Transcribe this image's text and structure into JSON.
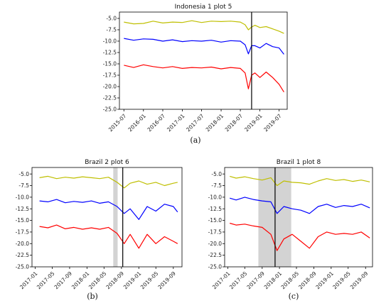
{
  "chart_data": [
    {
      "type": "line",
      "title": "Indonesia 1 plot 5",
      "caption": "(a)",
      "xlabel": "",
      "ylabel": "",
      "xlim": [
        "2015-05-20",
        "2019-09-15"
      ],
      "ylim": [
        -25.0,
        -3.6
      ],
      "yticks": [
        -5.0,
        -7.5,
        -10.0,
        -12.5,
        -15.0,
        -17.5,
        -20.0,
        -22.5,
        -25.0
      ],
      "ytick_labels": [
        "-5.0",
        "-7.5",
        "-10.0",
        "-12.5",
        "-15.0",
        "-17.5",
        "-20.0",
        "-22.5",
        "-25.0"
      ],
      "xticks": [
        "2015-07-01",
        "2016-01-01",
        "2016-07-01",
        "2017-01-01",
        "2017-07-01",
        "2018-01-01",
        "2018-07-01",
        "2019-01-01",
        "2019-07-01"
      ],
      "xtick_labels": [
        "2015-07",
        "2016-01",
        "2016-07",
        "2017-01",
        "2017-07",
        "2018-01",
        "2018-07",
        "2019-01",
        "2019-07"
      ],
      "vline": "2018-10-15",
      "shaded": [],
      "series": [
        {
          "color": "#bfbf00",
          "x": [
            "2015-07-01",
            "2015-10-01",
            "2016-01-01",
            "2016-04-01",
            "2016-07-01",
            "2016-10-01",
            "2017-01-01",
            "2017-04-01",
            "2017-07-01",
            "2017-10-01",
            "2018-01-01",
            "2018-04-01",
            "2018-07-01",
            "2018-08-15",
            "2018-09-15",
            "2018-10-15",
            "2018-11-15",
            "2019-01-01",
            "2019-03-01",
            "2019-05-01",
            "2019-07-01",
            "2019-08-15"
          ],
          "values": [
            -5.8,
            -6.2,
            -6.1,
            -5.6,
            -6.0,
            -5.8,
            -5.9,
            -5.5,
            -5.9,
            -5.6,
            -5.7,
            -5.6,
            -5.8,
            -6.4,
            -7.5,
            -6.9,
            -6.5,
            -7.0,
            -6.8,
            -7.3,
            -7.8,
            -8.3
          ]
        },
        {
          "color": "#0000ff",
          "x": [
            "2015-07-01",
            "2015-10-01",
            "2016-01-01",
            "2016-04-01",
            "2016-07-01",
            "2016-10-01",
            "2017-01-01",
            "2017-04-01",
            "2017-07-01",
            "2017-10-01",
            "2018-01-01",
            "2018-04-01",
            "2018-07-01",
            "2018-08-15",
            "2018-09-15",
            "2018-10-15",
            "2018-11-15",
            "2019-01-01",
            "2019-03-01",
            "2019-05-01",
            "2019-07-01",
            "2019-08-15"
          ],
          "values": [
            -9.4,
            -9.8,
            -9.5,
            -9.6,
            -10.0,
            -9.7,
            -10.1,
            -9.9,
            -10.0,
            -9.8,
            -10.2,
            -9.9,
            -10.0,
            -10.8,
            -12.8,
            -11.0,
            -11.0,
            -11.5,
            -10.5,
            -11.2,
            -11.5,
            -12.9
          ]
        },
        {
          "color": "#ff0000",
          "x": [
            "2015-07-01",
            "2015-10-01",
            "2016-01-01",
            "2016-04-01",
            "2016-07-01",
            "2016-10-01",
            "2017-01-01",
            "2017-04-01",
            "2017-07-01",
            "2017-10-01",
            "2018-01-01",
            "2018-04-01",
            "2018-07-01",
            "2018-08-15",
            "2018-09-15",
            "2018-10-15",
            "2018-11-15",
            "2019-01-01",
            "2019-03-01",
            "2019-05-01",
            "2019-07-01",
            "2019-08-15"
          ],
          "values": [
            -15.3,
            -15.8,
            -15.2,
            -15.6,
            -15.9,
            -15.6,
            -16.0,
            -15.8,
            -15.9,
            -15.7,
            -16.1,
            -15.8,
            -16.0,
            -17.0,
            -20.5,
            -17.5,
            -17.0,
            -18.0,
            -16.8,
            -18.0,
            -19.5,
            -21.2
          ]
        }
      ]
    },
    {
      "type": "line",
      "title": "Brazil 2 plot 6",
      "caption": "(b)",
      "xlabel": "",
      "ylabel": "",
      "xlim": [
        "2016-12-10",
        "2019-11-01"
      ],
      "ylim": [
        -25.0,
        -3.6
      ],
      "yticks": [
        -5.0,
        -7.5,
        -10.0,
        -12.5,
        -15.0,
        -17.5,
        -20.0,
        -22.5,
        -25.0
      ],
      "ytick_labels": [
        "-5.0",
        "-7.5",
        "-10.0",
        "-12.5",
        "-15.0",
        "-17.5",
        "-20.0",
        "-22.5",
        "-25.0"
      ],
      "xticks": [
        "2017-01-01",
        "2017-05-01",
        "2017-09-01",
        "2018-01-01",
        "2018-05-01",
        "2018-09-01",
        "2019-01-01",
        "2019-05-01",
        "2019-09-01"
      ],
      "xtick_labels": [
        "2017-01",
        "2017-05",
        "2017-09",
        "2018-01",
        "2018-05",
        "2018-09",
        "2019-01",
        "2019-05",
        "2019-09"
      ],
      "vline": "2018-09-10",
      "shaded": [
        [
          "2018-07-05",
          "2018-08-05"
        ]
      ],
      "series": [
        {
          "color": "#bfbf00",
          "x": [
            "2017-02-01",
            "2017-04-01",
            "2017-06-01",
            "2017-08-01",
            "2017-10-01",
            "2017-12-01",
            "2018-02-01",
            "2018-04-01",
            "2018-06-01",
            "2018-08-01",
            "2018-09-20",
            "2018-11-01",
            "2019-01-01",
            "2019-03-01",
            "2019-05-01",
            "2019-07-01",
            "2019-09-01",
            "2019-10-01"
          ],
          "values": [
            -5.8,
            -5.5,
            -6.0,
            -5.7,
            -5.9,
            -5.6,
            -5.8,
            -6.0,
            -5.7,
            -6.8,
            -8.0,
            -7.0,
            -6.5,
            -7.2,
            -6.8,
            -7.5,
            -7.0,
            -6.8
          ]
        },
        {
          "color": "#0000ff",
          "x": [
            "2017-02-01",
            "2017-04-01",
            "2017-06-01",
            "2017-08-01",
            "2017-10-01",
            "2017-12-01",
            "2018-02-01",
            "2018-04-01",
            "2018-06-01",
            "2018-08-01",
            "2018-09-20",
            "2018-11-01",
            "2019-01-01",
            "2019-03-01",
            "2019-05-01",
            "2019-07-01",
            "2019-09-01",
            "2019-10-01"
          ],
          "values": [
            -10.8,
            -11.0,
            -10.5,
            -11.2,
            -10.9,
            -11.1,
            -10.8,
            -11.3,
            -11.0,
            -12.0,
            -13.5,
            -12.5,
            -14.8,
            -12.0,
            -13.0,
            -11.5,
            -12.0,
            -13.2
          ]
        },
        {
          "color": "#ff0000",
          "x": [
            "2017-02-01",
            "2017-04-01",
            "2017-06-01",
            "2017-08-01",
            "2017-10-01",
            "2017-12-01",
            "2018-02-01",
            "2018-04-01",
            "2018-06-01",
            "2018-08-01",
            "2018-09-20",
            "2018-11-01",
            "2019-01-01",
            "2019-03-01",
            "2019-05-01",
            "2019-07-01",
            "2019-09-01",
            "2019-10-01"
          ],
          "values": [
            -16.3,
            -16.6,
            -16.0,
            -16.8,
            -16.5,
            -16.9,
            -16.6,
            -16.9,
            -16.5,
            -17.8,
            -20.0,
            -18.0,
            -21.0,
            -18.0,
            -20.0,
            -18.5,
            -19.5,
            -20.0
          ]
        }
      ]
    },
    {
      "type": "line",
      "title": "Brazil 1 plot 8",
      "caption": "(c)",
      "xlabel": "",
      "ylabel": "",
      "xlim": [
        "2016-12-10",
        "2019-10-20"
      ],
      "ylim": [
        -25.0,
        -3.6
      ],
      "yticks": [
        -5.0,
        -7.5,
        -10.0,
        -12.5,
        -15.0,
        -17.5,
        -20.0,
        -22.5,
        -25.0
      ],
      "ytick_labels": [
        "-5.0",
        "-7.5",
        "-10.0",
        "-12.5",
        "-15.0",
        "-17.5",
        "-20.0",
        "-22.5",
        "-25.0"
      ],
      "xticks": [
        "2017-01-01",
        "2017-05-01",
        "2017-09-01",
        "2018-01-01",
        "2018-05-01",
        "2018-09-01",
        "2019-01-01",
        "2019-05-01",
        "2019-09-01"
      ],
      "xtick_labels": [
        "2017-01",
        "2017-05",
        "2017-09",
        "2018-01",
        "2018-05",
        "2018-09",
        "2019-01",
        "2019-05",
        "2019-09"
      ],
      "vline": "2017-12-01",
      "shaded": [
        [
          "2017-08-05",
          "2018-03-25"
        ]
      ],
      "series": [
        {
          "color": "#bfbf00",
          "x": [
            "2017-01-15",
            "2017-03-01",
            "2017-05-01",
            "2017-07-01",
            "2017-09-01",
            "2017-11-01",
            "2017-12-15",
            "2018-02-01",
            "2018-04-01",
            "2018-06-01",
            "2018-08-01",
            "2018-10-01",
            "2018-12-01",
            "2019-02-01",
            "2019-04-01",
            "2019-06-01",
            "2019-08-01",
            "2019-10-01"
          ],
          "values": [
            -5.5,
            -5.9,
            -5.6,
            -6.0,
            -6.3,
            -5.8,
            -7.5,
            -6.5,
            -6.8,
            -6.9,
            -7.2,
            -6.5,
            -6.0,
            -6.4,
            -6.2,
            -6.6,
            -6.3,
            -6.7
          ]
        },
        {
          "color": "#0000ff",
          "x": [
            "2017-01-15",
            "2017-03-01",
            "2017-05-01",
            "2017-07-01",
            "2017-09-01",
            "2017-11-01",
            "2017-12-15",
            "2018-02-01",
            "2018-04-01",
            "2018-06-01",
            "2018-08-01",
            "2018-10-01",
            "2018-12-01",
            "2019-02-01",
            "2019-04-01",
            "2019-06-01",
            "2019-08-01",
            "2019-10-01"
          ],
          "values": [
            -10.2,
            -10.6,
            -10.0,
            -10.5,
            -10.8,
            -11.0,
            -13.5,
            -12.0,
            -12.5,
            -12.8,
            -13.5,
            -12.0,
            -11.5,
            -12.2,
            -11.8,
            -12.0,
            -11.5,
            -12.3
          ]
        },
        {
          "color": "#ff0000",
          "x": [
            "2017-01-15",
            "2017-03-01",
            "2017-05-01",
            "2017-07-01",
            "2017-09-01",
            "2017-11-01",
            "2017-12-15",
            "2018-02-01",
            "2018-04-01",
            "2018-06-01",
            "2018-08-01",
            "2018-10-01",
            "2018-12-01",
            "2019-02-01",
            "2019-04-01",
            "2019-06-01",
            "2019-08-01",
            "2019-10-01"
          ],
          "values": [
            -15.6,
            -16.0,
            -15.8,
            -16.2,
            -16.5,
            -18.0,
            -21.5,
            -19.0,
            -18.0,
            -19.5,
            -21.0,
            -18.5,
            -17.5,
            -18.0,
            -17.8,
            -18.0,
            -17.5,
            -18.8
          ]
        }
      ]
    }
  ]
}
